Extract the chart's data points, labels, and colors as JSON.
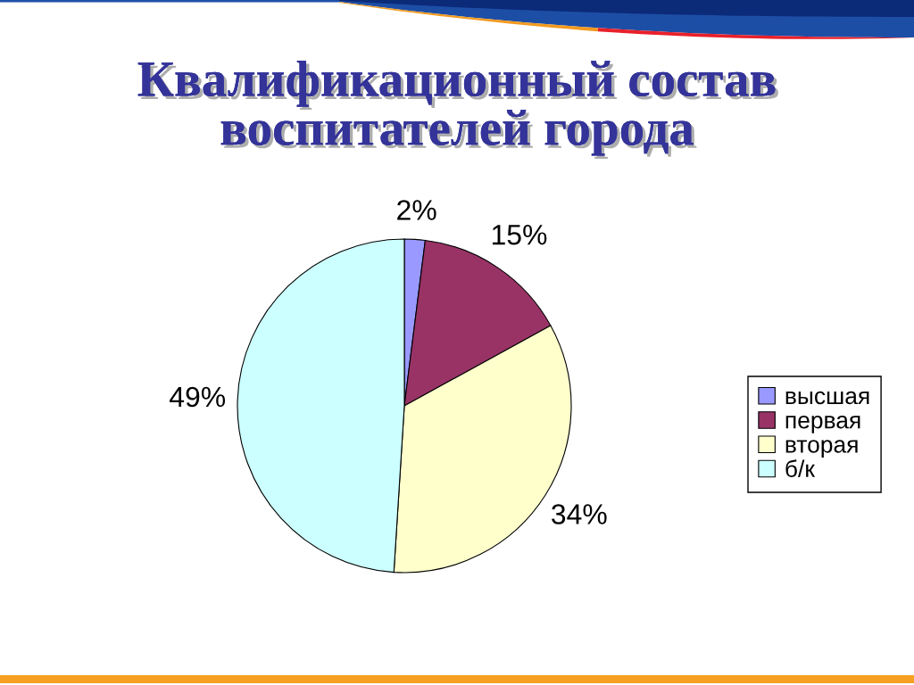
{
  "chart_data": {
    "type": "pie",
    "title": "Квалификационный состав\nвоспитателей города",
    "categories": [
      "высшая",
      "первая",
      "вторая",
      "б/к"
    ],
    "values": [
      2,
      15,
      34,
      49
    ],
    "value_labels": [
      "2%",
      "15%",
      "34%",
      "49%"
    ],
    "colors": [
      "#9999ff",
      "#993366",
      "#ffffcc",
      "#ccffff"
    ],
    "legend": "right"
  }
}
